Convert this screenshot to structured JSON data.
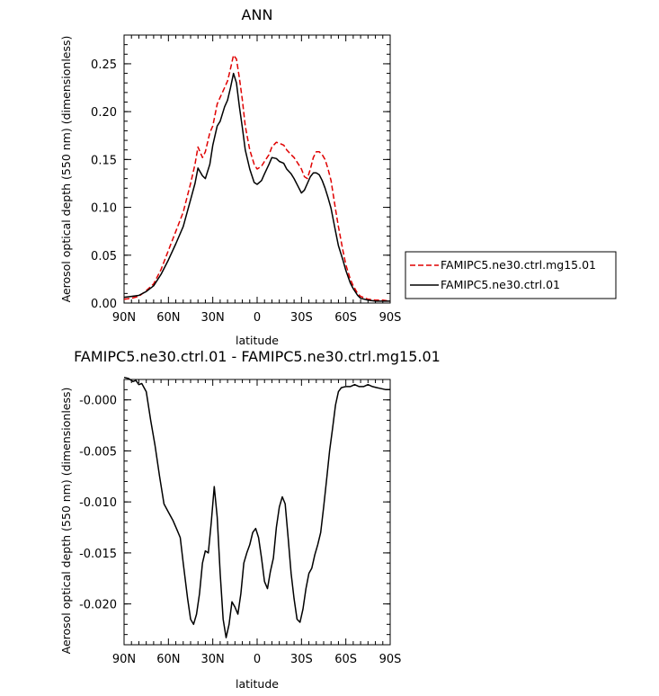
{
  "chart_data": [
    {
      "type": "line",
      "title": "ANN",
      "xlabel": "latitude",
      "ylabel": "Aerosol optical depth (550 nm) (dimensionless)",
      "xlim": [
        90,
        -90
      ],
      "ylim": [
        0,
        0.28
      ],
      "x_ticks": [
        "90N",
        "60N",
        "30N",
        "0",
        "30S",
        "60S",
        "90S"
      ],
      "y_ticks": [
        "0.00",
        "0.05",
        "0.10",
        "0.15",
        "0.20",
        "0.25"
      ],
      "x": [
        90,
        85,
        80,
        75,
        70,
        65,
        60,
        55,
        50,
        45,
        42,
        40,
        37,
        35,
        32,
        30,
        27,
        25,
        22,
        20,
        18,
        16,
        14,
        12,
        10,
        8,
        5,
        2,
        0,
        -3,
        -5,
        -8,
        -10,
        -13,
        -15,
        -18,
        -20,
        -23,
        -25,
        -28,
        -30,
        -32,
        -34,
        -36,
        -38,
        -40,
        -42,
        -44,
        -46,
        -48,
        -50,
        -53,
        -55,
        -58,
        -60,
        -63,
        -65,
        -68,
        -70,
        -75,
        -80,
        -85,
        -90
      ],
      "series": [
        {
          "name": "FAMIPC5.ne30.ctrl.mg15.01",
          "color": "#e00000",
          "style": "dashed",
          "values": [
            0.004,
            0.005,
            0.007,
            0.013,
            0.02,
            0.035,
            0.055,
            0.075,
            0.095,
            0.125,
            0.145,
            0.163,
            0.152,
            0.158,
            0.178,
            0.185,
            0.208,
            0.215,
            0.225,
            0.232,
            0.245,
            0.259,
            0.255,
            0.235,
            0.212,
            0.185,
            0.16,
            0.145,
            0.14,
            0.143,
            0.148,
            0.155,
            0.163,
            0.168,
            0.167,
            0.165,
            0.16,
            0.155,
            0.152,
            0.145,
            0.14,
            0.132,
            0.13,
            0.14,
            0.152,
            0.158,
            0.158,
            0.155,
            0.15,
            0.14,
            0.128,
            0.098,
            0.08,
            0.055,
            0.04,
            0.025,
            0.018,
            0.01,
            0.007,
            0.004,
            0.003,
            0.003,
            0.002
          ]
        },
        {
          "name": "FAMIPC5.ne30.ctrl.01",
          "color": "#000000",
          "style": "solid",
          "values": [
            0.006,
            0.007,
            0.008,
            0.012,
            0.018,
            0.03,
            0.045,
            0.062,
            0.08,
            0.108,
            0.125,
            0.141,
            0.133,
            0.13,
            0.145,
            0.165,
            0.185,
            0.19,
            0.205,
            0.212,
            0.225,
            0.24,
            0.23,
            0.205,
            0.183,
            0.16,
            0.14,
            0.126,
            0.124,
            0.128,
            0.135,
            0.145,
            0.152,
            0.151,
            0.148,
            0.146,
            0.14,
            0.135,
            0.13,
            0.121,
            0.115,
            0.118,
            0.125,
            0.132,
            0.136,
            0.136,
            0.134,
            0.128,
            0.12,
            0.11,
            0.099,
            0.075,
            0.06,
            0.045,
            0.034,
            0.021,
            0.015,
            0.008,
            0.005,
            0.003,
            0.002,
            0.002,
            0.002
          ]
        }
      ],
      "legend": "right-middle"
    },
    {
      "type": "line",
      "title": "FAMIPC5.ne30.ctrl.01 - FAMIPC5.ne30.ctrl.mg15.01",
      "xlabel": "latitude",
      "ylabel": "Aerosol optical depth (550 nm) (dimensionless)",
      "xlim": [
        90,
        -90
      ],
      "ylim": [
        -0.024,
        0.002
      ],
      "x_ticks": [
        "90N",
        "60N",
        "30N",
        "0",
        "30S",
        "60S",
        "90S"
      ],
      "y_ticks": [
        "-0.000",
        "-0.005",
        "-0.010",
        "-0.015",
        "-0.020"
      ],
      "x": [
        90,
        87,
        84,
        82,
        80,
        78,
        75,
        72,
        69,
        66,
        63,
        60,
        57,
        54,
        52,
        50,
        47,
        45,
        43,
        41,
        39,
        37,
        35,
        33,
        31,
        29,
        27,
        25,
        23,
        21,
        19,
        17,
        15,
        13,
        11,
        9,
        7,
        5,
        3,
        1,
        -1,
        -3,
        -5,
        -7,
        -9,
        -11,
        -13,
        -15,
        -17,
        -19,
        -21,
        -23,
        -25,
        -27,
        -29,
        -31,
        -33,
        -35,
        -37,
        -39,
        -41,
        -43,
        -45,
        -47,
        -49,
        -51,
        -53,
        -55,
        -57,
        -60,
        -63,
        -66,
        -69,
        -72,
        -75,
        -78,
        -81,
        -84,
        -87,
        -90
      ],
      "series": [
        {
          "name": "",
          "color": "#000000",
          "style": "solid",
          "values": [
            0.0022,
            0.0021,
            0.0018,
            0.0019,
            0.0015,
            0.0016,
            0.0008,
            -0.002,
            -0.0045,
            -0.0075,
            -0.0102,
            -0.011,
            -0.0118,
            -0.0128,
            -0.0135,
            -0.016,
            -0.0195,
            -0.0215,
            -0.022,
            -0.021,
            -0.019,
            -0.016,
            -0.0148,
            -0.015,
            -0.012,
            -0.0085,
            -0.0115,
            -0.017,
            -0.0215,
            -0.0233,
            -0.022,
            -0.0198,
            -0.0203,
            -0.021,
            -0.019,
            -0.016,
            -0.015,
            -0.0142,
            -0.013,
            -0.0126,
            -0.0135,
            -0.0155,
            -0.0178,
            -0.0185,
            -0.0168,
            -0.0155,
            -0.0125,
            -0.0105,
            -0.0095,
            -0.0102,
            -0.0135,
            -0.017,
            -0.0195,
            -0.0215,
            -0.0218,
            -0.0205,
            -0.0185,
            -0.017,
            -0.0165,
            -0.0152,
            -0.0142,
            -0.013,
            -0.0105,
            -0.0078,
            -0.005,
            -0.0028,
            -0.0005,
            0.0008,
            0.0012,
            0.0013,
            0.0013,
            0.0015,
            0.0013,
            0.0013,
            0.0015,
            0.0013,
            0.0012,
            0.0011,
            0.001,
            0.001
          ]
        }
      ]
    }
  ]
}
